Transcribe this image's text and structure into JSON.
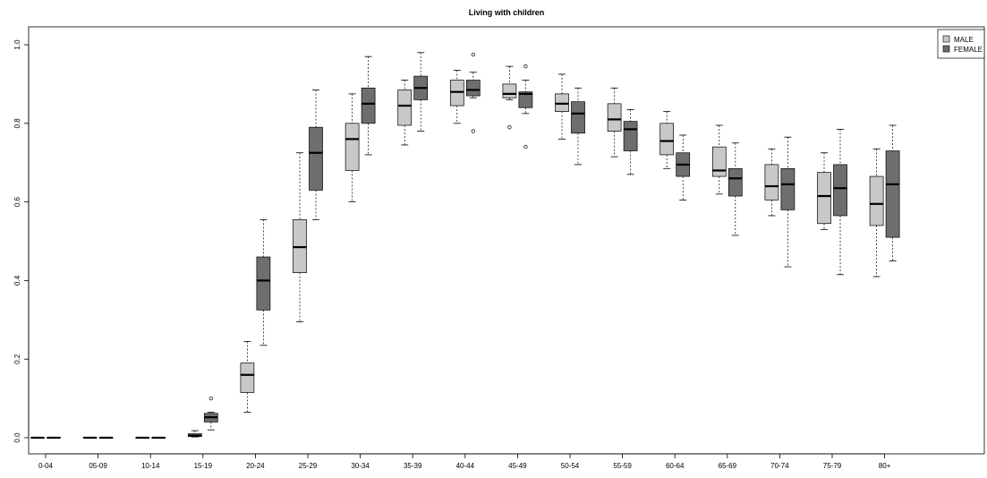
{
  "chart_data": {
    "type": "boxplot",
    "title": "Living with children",
    "xlabel": "",
    "ylabel": "",
    "ylim": [
      0,
      1
    ],
    "yticks": [
      "0.0",
      "0.2",
      "0.4",
      "0.6",
      "0.8",
      "1.0"
    ],
    "categories": [
      "0-04",
      "05-09",
      "10-14",
      "15-19",
      "20-24",
      "25-29",
      "30-34",
      "35-39",
      "40-44",
      "45-49",
      "50-54",
      "55-59",
      "60-64",
      "65-69",
      "70-74",
      "75-79",
      "80+"
    ],
    "legend": {
      "position": "top-right",
      "entries": [
        "MALE",
        "FEMALE"
      ]
    },
    "colors": {
      "MALE": "#c8c8c8",
      "FEMALE": "#6e6e6e"
    },
    "series": [
      {
        "name": "MALE",
        "boxes": [
          {
            "min": 0.0,
            "q1": 0.0,
            "median": 0.0,
            "q3": 0.0,
            "max": 0.0,
            "outliers": []
          },
          {
            "min": 0.0,
            "q1": 0.0,
            "median": 0.0,
            "q3": 0.0,
            "max": 0.0,
            "outliers": []
          },
          {
            "min": 0.0,
            "q1": 0.0,
            "median": 0.0,
            "q3": 0.0,
            "max": 0.0,
            "outliers": []
          },
          {
            "min": 0.002,
            "q1": 0.003,
            "median": 0.006,
            "q3": 0.01,
            "max": 0.018,
            "outliers": []
          },
          {
            "min": 0.065,
            "q1": 0.115,
            "median": 0.16,
            "q3": 0.19,
            "max": 0.245,
            "outliers": []
          },
          {
            "min": 0.295,
            "q1": 0.42,
            "median": 0.485,
            "q3": 0.555,
            "max": 0.725,
            "outliers": []
          },
          {
            "min": 0.6,
            "q1": 0.68,
            "median": 0.76,
            "q3": 0.8,
            "max": 0.875,
            "outliers": []
          },
          {
            "min": 0.745,
            "q1": 0.795,
            "median": 0.845,
            "q3": 0.885,
            "max": 0.91,
            "outliers": []
          },
          {
            "min": 0.8,
            "q1": 0.845,
            "median": 0.88,
            "q3": 0.91,
            "max": 0.935,
            "outliers": []
          },
          {
            "min": 0.86,
            "q1": 0.865,
            "median": 0.875,
            "q3": 0.9,
            "max": 0.945,
            "outliers": [
              0.79
            ]
          },
          {
            "min": 0.76,
            "q1": 0.83,
            "median": 0.85,
            "q3": 0.875,
            "max": 0.925,
            "outliers": []
          },
          {
            "min": 0.715,
            "q1": 0.78,
            "median": 0.81,
            "q3": 0.85,
            "max": 0.89,
            "outliers": []
          },
          {
            "min": 0.685,
            "q1": 0.72,
            "median": 0.755,
            "q3": 0.8,
            "max": 0.83,
            "outliers": []
          },
          {
            "min": 0.62,
            "q1": 0.665,
            "median": 0.68,
            "q3": 0.74,
            "max": 0.795,
            "outliers": []
          },
          {
            "min": 0.565,
            "q1": 0.605,
            "median": 0.64,
            "q3": 0.695,
            "max": 0.735,
            "outliers": []
          },
          {
            "min": 0.53,
            "q1": 0.545,
            "median": 0.615,
            "q3": 0.675,
            "max": 0.725,
            "outliers": []
          },
          {
            "min": 0.41,
            "q1": 0.54,
            "median": 0.595,
            "q3": 0.665,
            "max": 0.735,
            "outliers": []
          }
        ]
      },
      {
        "name": "FEMALE",
        "boxes": [
          {
            "min": 0.0,
            "q1": 0.0,
            "median": 0.0,
            "q3": 0.0,
            "max": 0.0,
            "outliers": []
          },
          {
            "min": 0.0,
            "q1": 0.0,
            "median": 0.0,
            "q3": 0.0,
            "max": 0.0,
            "outliers": []
          },
          {
            "min": 0.0,
            "q1": 0.0,
            "median": 0.0,
            "q3": 0.0,
            "max": 0.0,
            "outliers": []
          },
          {
            "min": 0.02,
            "q1": 0.04,
            "median": 0.052,
            "q3": 0.062,
            "max": 0.065,
            "outliers": [
              0.1
            ]
          },
          {
            "min": 0.235,
            "q1": 0.325,
            "median": 0.4,
            "q3": 0.46,
            "max": 0.555,
            "outliers": []
          },
          {
            "min": 0.555,
            "q1": 0.63,
            "median": 0.725,
            "q3": 0.79,
            "max": 0.885,
            "outliers": []
          },
          {
            "min": 0.72,
            "q1": 0.8,
            "median": 0.85,
            "q3": 0.89,
            "max": 0.97,
            "outliers": []
          },
          {
            "min": 0.78,
            "q1": 0.86,
            "median": 0.89,
            "q3": 0.92,
            "max": 0.98,
            "outliers": []
          },
          {
            "min": 0.865,
            "q1": 0.87,
            "median": 0.885,
            "q3": 0.91,
            "max": 0.93,
            "outliers": [
              0.975,
              0.78
            ]
          },
          {
            "min": 0.825,
            "q1": 0.84,
            "median": 0.875,
            "q3": 0.88,
            "max": 0.91,
            "outliers": [
              0.945,
              0.74
            ]
          },
          {
            "min": 0.695,
            "q1": 0.775,
            "median": 0.825,
            "q3": 0.855,
            "max": 0.89,
            "outliers": []
          },
          {
            "min": 0.67,
            "q1": 0.73,
            "median": 0.785,
            "q3": 0.805,
            "max": 0.835,
            "outliers": []
          },
          {
            "min": 0.605,
            "q1": 0.665,
            "median": 0.695,
            "q3": 0.725,
            "max": 0.77,
            "outliers": []
          },
          {
            "min": 0.515,
            "q1": 0.615,
            "median": 0.66,
            "q3": 0.685,
            "max": 0.75,
            "outliers": []
          },
          {
            "min": 0.435,
            "q1": 0.58,
            "median": 0.645,
            "q3": 0.685,
            "max": 0.765,
            "outliers": []
          },
          {
            "min": 0.415,
            "q1": 0.565,
            "median": 0.635,
            "q3": 0.695,
            "max": 0.785,
            "outliers": []
          },
          {
            "min": 0.45,
            "q1": 0.51,
            "median": 0.645,
            "q3": 0.73,
            "max": 0.795,
            "outliers": []
          }
        ]
      }
    ],
    "grid": false
  }
}
